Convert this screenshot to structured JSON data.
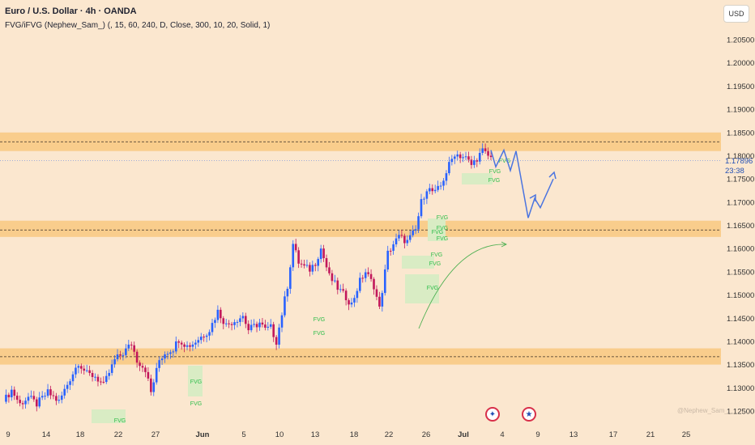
{
  "header": {
    "title": "Euro / U.S. Dollar · 4h · OANDA",
    "indicator": "FVG/iFVG (Nephew_Sam_) (, 15, 60, 240, D, Close, 300, 10, 20, Solid, 1)"
  },
  "currency_button": "USD",
  "price_tag": {
    "price": "1.17896",
    "countdown": "23:38"
  },
  "watermark": "@Nephew_Sam_",
  "event_icons": [
    "us-flag-icon",
    "eu-flag-icon"
  ],
  "colors": {
    "background": "#fbe7cf",
    "zone": "#f9cd8c",
    "bull": "#2962ff",
    "bear": "#c2185b",
    "fvg_box": "#d9ecc4",
    "fvg_text": "#2ebd4a",
    "projection": "#4a74e0",
    "arrow": "#4caf50"
  },
  "chart_data": {
    "type": "candlestick",
    "symbol": "EUR/USD",
    "timeframe": "4h",
    "y_ticks": [
      "1.20500",
      "1.20000",
      "1.19500",
      "1.19000",
      "1.18500",
      "1.18000",
      "1.17500",
      "1.17000",
      "1.16500",
      "1.16000",
      "1.15500",
      "1.15000",
      "1.14500",
      "1.14000",
      "1.13500",
      "1.13000",
      "1.12500"
    ],
    "x_ticks": [
      "9",
      "14",
      "18",
      "22",
      "27",
      "Jun",
      "5",
      "10",
      "13",
      "18",
      "22",
      "26",
      "Jul",
      "4",
      "9",
      "13",
      "17",
      "21",
      "25"
    ],
    "x_ticks_bold": [
      "Jun",
      "Jul"
    ],
    "horizontal_zones": [
      {
        "low": 1.181,
        "high": 1.185,
        "line": 1.183
      },
      {
        "low": 1.1625,
        "high": 1.166,
        "line": 1.164
      },
      {
        "low": 1.135,
        "high": 1.1385,
        "line": 1.1367
      }
    ],
    "fvg_label": "FVG",
    "fvg_count": 15,
    "price_path": [
      [
        0,
        1.127
      ],
      [
        3,
        1.1295
      ],
      [
        6,
        1.1265
      ],
      [
        9,
        1.128
      ],
      [
        12,
        1.1265
      ],
      [
        16,
        1.129
      ],
      [
        20,
        1.127
      ],
      [
        24,
        1.132
      ],
      [
        27,
        1.1355
      ],
      [
        30,
        1.133
      ],
      [
        33,
        1.1325
      ],
      [
        36,
        1.1305
      ],
      [
        40,
        1.136
      ],
      [
        43,
        1.1375
      ],
      [
        46,
        1.1395
      ],
      [
        48,
        1.136
      ],
      [
        51,
        1.134
      ],
      [
        53,
        1.129
      ],
      [
        56,
        1.136
      ],
      [
        58,
        1.1375
      ],
      [
        61,
        1.1385
      ],
      [
        63,
        1.1405
      ],
      [
        66,
        1.139
      ],
      [
        68,
        1.1395
      ],
      [
        71,
        1.141
      ],
      [
        74,
        1.1425
      ],
      [
        77,
        1.1465
      ],
      [
        80,
        1.1435
      ],
      [
        83,
        1.1445
      ],
      [
        86,
        1.1455
      ],
      [
        88,
        1.1425
      ],
      [
        92,
        1.144
      ],
      [
        94,
        1.1425
      ],
      [
        96,
        1.143
      ],
      [
        98,
        1.14
      ],
      [
        102,
        1.152
      ],
      [
        104,
        1.161
      ],
      [
        106,
        1.157
      ],
      [
        108,
        1.156
      ],
      [
        110,
        1.1555
      ],
      [
        112,
        1.157
      ],
      [
        114,
        1.16
      ],
      [
        117,
        1.154
      ],
      [
        120,
        1.1515
      ],
      [
        123,
        1.1495
      ],
      [
        125,
        1.148
      ],
      [
        128,
        1.153
      ],
      [
        130,
        1.155
      ],
      [
        133,
        1.152
      ],
      [
        135,
        1.147
      ],
      [
        138,
        1.159
      ],
      [
        140,
        1.161
      ],
      [
        142,
        1.1625
      ],
      [
        145,
        1.1615
      ],
      [
        148,
        1.164
      ],
      [
        150,
        1.17
      ],
      [
        152,
        1.173
      ],
      [
        155,
        1.172
      ],
      [
        157,
        1.1735
      ],
      [
        160,
        1.178
      ],
      [
        162,
        1.1805
      ],
      [
        164,
        1.18
      ],
      [
        166,
        1.1795
      ],
      [
        168,
        1.178
      ],
      [
        170,
        1.1795
      ],
      [
        172,
        1.181
      ],
      [
        175,
        1.1795
      ]
    ],
    "projection_path": [
      [
        1.1812
      ],
      [
        1.1776
      ],
      [
        1.1812
      ],
      [
        1.1768
      ],
      [
        1.181
      ],
      [
        1.1666
      ],
      [
        1.1708
      ],
      [
        1.1688
      ],
      [
        1.175
      ]
    ],
    "current_price": 1.17896
  }
}
